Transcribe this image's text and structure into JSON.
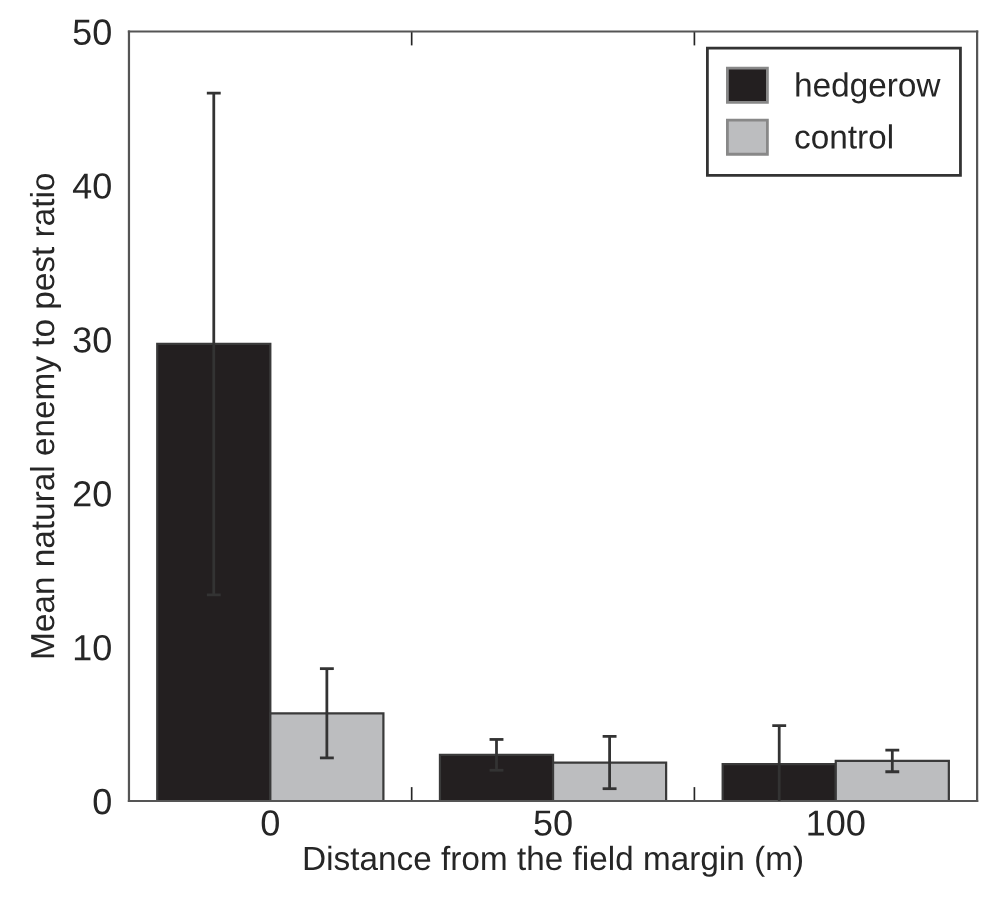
{
  "chart_data": {
    "type": "bar",
    "xlabel": "Distance from the field margin (m)",
    "ylabel": "Mean natural enemy to pest ratio",
    "categories": [
      "0",
      "50",
      "100"
    ],
    "series": [
      {
        "name": "hedgerow",
        "color": "#231f20",
        "values": [
          29.7,
          3.0,
          2.4
        ],
        "errors": [
          16.3,
          1.0,
          2.5
        ]
      },
      {
        "name": "control",
        "color": "#bcbdbf",
        "values": [
          5.7,
          2.5,
          2.6
        ],
        "errors": [
          2.9,
          1.7,
          0.7
        ]
      }
    ],
    "ylim": [
      0,
      50
    ],
    "yticks": [
      0,
      10,
      20,
      30,
      40,
      50
    ],
    "grid": false,
    "legend": "top right"
  }
}
